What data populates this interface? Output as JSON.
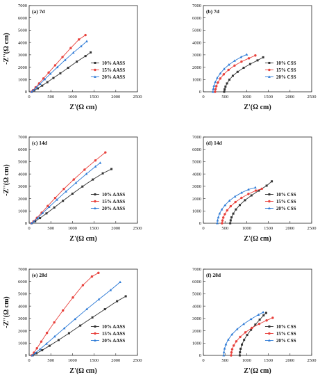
{
  "chart_data": [
    {
      "type": "line",
      "panel_label": "(a) 7d",
      "xlabel": "Z'(Ω cm)",
      "ylabel": "-Z''(Ω cm)",
      "xlim": [
        0,
        2500
      ],
      "ylim": [
        0,
        7000
      ],
      "xticks": [
        0,
        500,
        1000,
        1500,
        2000,
        2500
      ],
      "yticks": [
        0,
        1000,
        2000,
        3000,
        4000,
        5000,
        6000,
        7000
      ],
      "legend_position": "bottom-right",
      "series": [
        {
          "name": "10% AASS",
          "color": "#333333",
          "marker": "square",
          "x": [
            60,
            120,
            200,
            300,
            420,
            560,
            720,
            900,
            1100,
            1300,
            1420
          ],
          "y": [
            0,
            120,
            280,
            500,
            780,
            1120,
            1500,
            1950,
            2450,
            2900,
            3200
          ]
        },
        {
          "name": "15% AASS",
          "color": "#e8413c",
          "marker": "circle",
          "x": [
            50,
            90,
            150,
            230,
            330,
            450,
            600,
            770,
            960,
            1150,
            1300
          ],
          "y": [
            0,
            130,
            360,
            680,
            1080,
            1560,
            2150,
            2820,
            3550,
            4250,
            4600
          ]
        },
        {
          "name": "20% AASS",
          "color": "#2d7ad6",
          "marker": "triangle",
          "x": [
            55,
            100,
            165,
            250,
            360,
            490,
            650,
            830,
            1020,
            1200,
            1330
          ],
          "y": [
            0,
            130,
            340,
            640,
            1020,
            1460,
            1990,
            2580,
            3180,
            3700,
            4100
          ]
        }
      ]
    },
    {
      "type": "line",
      "panel_label": "(b) 7d",
      "xlabel": "Z'(Ω cm)",
      "ylabel": "",
      "xlim": [
        0,
        2500
      ],
      "ylim": [
        0,
        7000
      ],
      "xticks": [
        0,
        500,
        1000,
        1500,
        2000,
        2500
      ],
      "yticks": [
        0,
        1000,
        2000,
        3000,
        4000,
        5000,
        6000,
        7000
      ],
      "legend_position": "bottom-right",
      "series": [
        {
          "name": "10% CSS",
          "color": "#333333",
          "marker": "square",
          "x": [
            480,
            490,
            510,
            545,
            600,
            680,
            790,
            930,
            1080,
            1250,
            1380
          ],
          "y": [
            0,
            200,
            420,
            680,
            980,
            1300,
            1620,
            1950,
            2250,
            2550,
            2800
          ]
        },
        {
          "name": "15% CSS",
          "color": "#e8413c",
          "marker": "circle",
          "x": [
            270,
            280,
            300,
            335,
            390,
            470,
            580,
            720,
            880,
            1050,
            1200
          ],
          "y": [
            0,
            220,
            460,
            750,
            1080,
            1420,
            1780,
            2130,
            2450,
            2720,
            2950
          ]
        },
        {
          "name": "20% CSS",
          "color": "#2d7ad6",
          "marker": "triangle",
          "x": [
            220,
            228,
            245,
            275,
            320,
            390,
            480,
            590,
            720,
            870,
            1000
          ],
          "y": [
            0,
            230,
            490,
            790,
            1130,
            1490,
            1860,
            2200,
            2520,
            2820,
            3030
          ]
        }
      ]
    },
    {
      "type": "line",
      "panel_label": "(c) 14d",
      "xlabel": "Z'(Ω cm)",
      "ylabel": "-Z''(Ω cm)",
      "xlim": [
        0,
        2500
      ],
      "ylim": [
        0,
        7000
      ],
      "xticks": [
        0,
        500,
        1000,
        1500,
        2000,
        2500
      ],
      "yticks": [
        0,
        1000,
        2000,
        3000,
        4000,
        5000,
        6000,
        7000
      ],
      "legend_position": "bottom-right",
      "series": [
        {
          "name": "10% AASS",
          "color": "#333333",
          "marker": "square",
          "x": [
            60,
            140,
            250,
            400,
            580,
            780,
            1000,
            1230,
            1470,
            1700,
            1900
          ],
          "y": [
            0,
            160,
            420,
            800,
            1280,
            1820,
            2400,
            2980,
            3550,
            4050,
            4400
          ]
        },
        {
          "name": "15% AASS",
          "color": "#e8413c",
          "marker": "circle",
          "x": [
            50,
            100,
            180,
            290,
            430,
            600,
            800,
            1030,
            1280,
            1530,
            1760
          ],
          "y": [
            0,
            160,
            440,
            860,
            1400,
            2050,
            2780,
            3550,
            4350,
            5100,
            5750
          ]
        },
        {
          "name": "20% AASS",
          "color": "#2d7ad6",
          "marker": "triangle",
          "x": [
            55,
            110,
            195,
            310,
            460,
            640,
            850,
            1080,
            1320,
            1530,
            1640
          ],
          "y": [
            0,
            150,
            420,
            820,
            1320,
            1910,
            2580,
            3280,
            4000,
            4600,
            4900
          ]
        }
      ]
    },
    {
      "type": "line",
      "panel_label": "(d) 14d",
      "xlabel": "Z'(Ω cm)",
      "ylabel": "",
      "xlim": [
        0,
        2500
      ],
      "ylim": [
        0,
        7000
      ],
      "xticks": [
        0,
        500,
        1000,
        1500,
        2000,
        2500
      ],
      "yticks": [
        0,
        1000,
        2000,
        3000,
        4000,
        5000,
        6000,
        7000
      ],
      "legend_position": "bottom-right",
      "series": [
        {
          "name": "10% CSS",
          "color": "#333333",
          "marker": "square",
          "x": [
            620,
            630,
            650,
            690,
            750,
            840,
            960,
            1110,
            1280,
            1460,
            1580
          ],
          "y": [
            0,
            230,
            480,
            780,
            1120,
            1480,
            1870,
            2260,
            2650,
            3050,
            3400
          ]
        },
        {
          "name": "15% CSS",
          "color": "#e8413c",
          "marker": "circle",
          "x": [
            430,
            440,
            460,
            495,
            550,
            630,
            740,
            880,
            1040,
            1210,
            1350
          ],
          "y": [
            0,
            220,
            460,
            740,
            1050,
            1380,
            1720,
            2060,
            2380,
            2650,
            2800
          ]
        },
        {
          "name": "20% CSS",
          "color": "#2d7ad6",
          "marker": "triangle",
          "x": [
            320,
            328,
            345,
            375,
            425,
            500,
            600,
            730,
            880,
            1040,
            1200
          ],
          "y": [
            0,
            230,
            490,
            790,
            1120,
            1470,
            1830,
            2170,
            2480,
            2740,
            2900
          ]
        }
      ]
    },
    {
      "type": "line",
      "panel_label": "(e) 28d",
      "xlabel": "Z'(Ω cm)",
      "ylabel": "-Z''(Ω cm)",
      "xlim": [
        0,
        2500
      ],
      "ylim": [
        0,
        7000
      ],
      "xticks": [
        0,
        500,
        1000,
        1500,
        2000,
        2500
      ],
      "yticks": [
        0,
        1000,
        2000,
        3000,
        4000,
        5000,
        6000,
        7000
      ],
      "legend_position": "bottom-right",
      "series": [
        {
          "name": "10% AASS",
          "color": "#333333",
          "marker": "square",
          "x": [
            80,
            170,
            300,
            470,
            680,
            920,
            1180,
            1460,
            1750,
            2030,
            2230
          ],
          "y": [
            0,
            170,
            420,
            780,
            1250,
            1800,
            2420,
            3080,
            3750,
            4400,
            4800
          ]
        },
        {
          "name": "15% AASS",
          "color": "#e8413c",
          "marker": "circle",
          "x": [
            60,
            110,
            180,
            280,
            410,
            580,
            780,
            1010,
            1240,
            1450,
            1600
          ],
          "y": [
            0,
            220,
            580,
            1120,
            1820,
            2680,
            3650,
            4700,
            5700,
            6400,
            6700
          ]
        },
        {
          "name": "20% AASS",
          "color": "#2d7ad6",
          "marker": "triangle",
          "x": [
            70,
            140,
            250,
            400,
            590,
            810,
            1060,
            1330,
            1610,
            1880,
            2100
          ],
          "y": [
            0,
            200,
            500,
            950,
            1530,
            2200,
            2950,
            3750,
            4550,
            5300,
            5950
          ]
        }
      ]
    },
    {
      "type": "line",
      "panel_label": "(f) 28d",
      "xlabel": "Z'(Ω cm)",
      "ylabel": "",
      "xlim": [
        0,
        2500
      ],
      "ylim": [
        0,
        7000
      ],
      "xticks": [
        0,
        500,
        1000,
        1500,
        2000,
        2500
      ],
      "yticks": [
        0,
        1000,
        2000,
        3000,
        4000,
        5000,
        6000,
        7000
      ],
      "legend_position": "bottom-right",
      "series": [
        {
          "name": "10% CSS",
          "color": "#333333",
          "marker": "square",
          "x": [
            840,
            845,
            860,
            890,
            940,
            1010,
            1100,
            1200,
            1300,
            1390,
            1450
          ],
          "y": [
            0,
            250,
            540,
            880,
            1260,
            1660,
            2080,
            2500,
            2900,
            3250,
            3450
          ]
        },
        {
          "name": "15% CSS",
          "color": "#e8413c",
          "marker": "circle",
          "x": [
            640,
            648,
            665,
            700,
            760,
            850,
            970,
            1120,
            1290,
            1460,
            1600
          ],
          "y": [
            0,
            240,
            500,
            800,
            1140,
            1500,
            1870,
            2230,
            2560,
            2840,
            3050
          ]
        },
        {
          "name": "20% CSS",
          "color": "#2d7ad6",
          "marker": "triangle",
          "x": [
            470,
            475,
            490,
            520,
            575,
            660,
            780,
            930,
            1100,
            1270,
            1380
          ],
          "y": [
            0,
            260,
            560,
            900,
            1280,
            1700,
            2130,
            2550,
            2950,
            3300,
            3500
          ]
        }
      ]
    }
  ]
}
